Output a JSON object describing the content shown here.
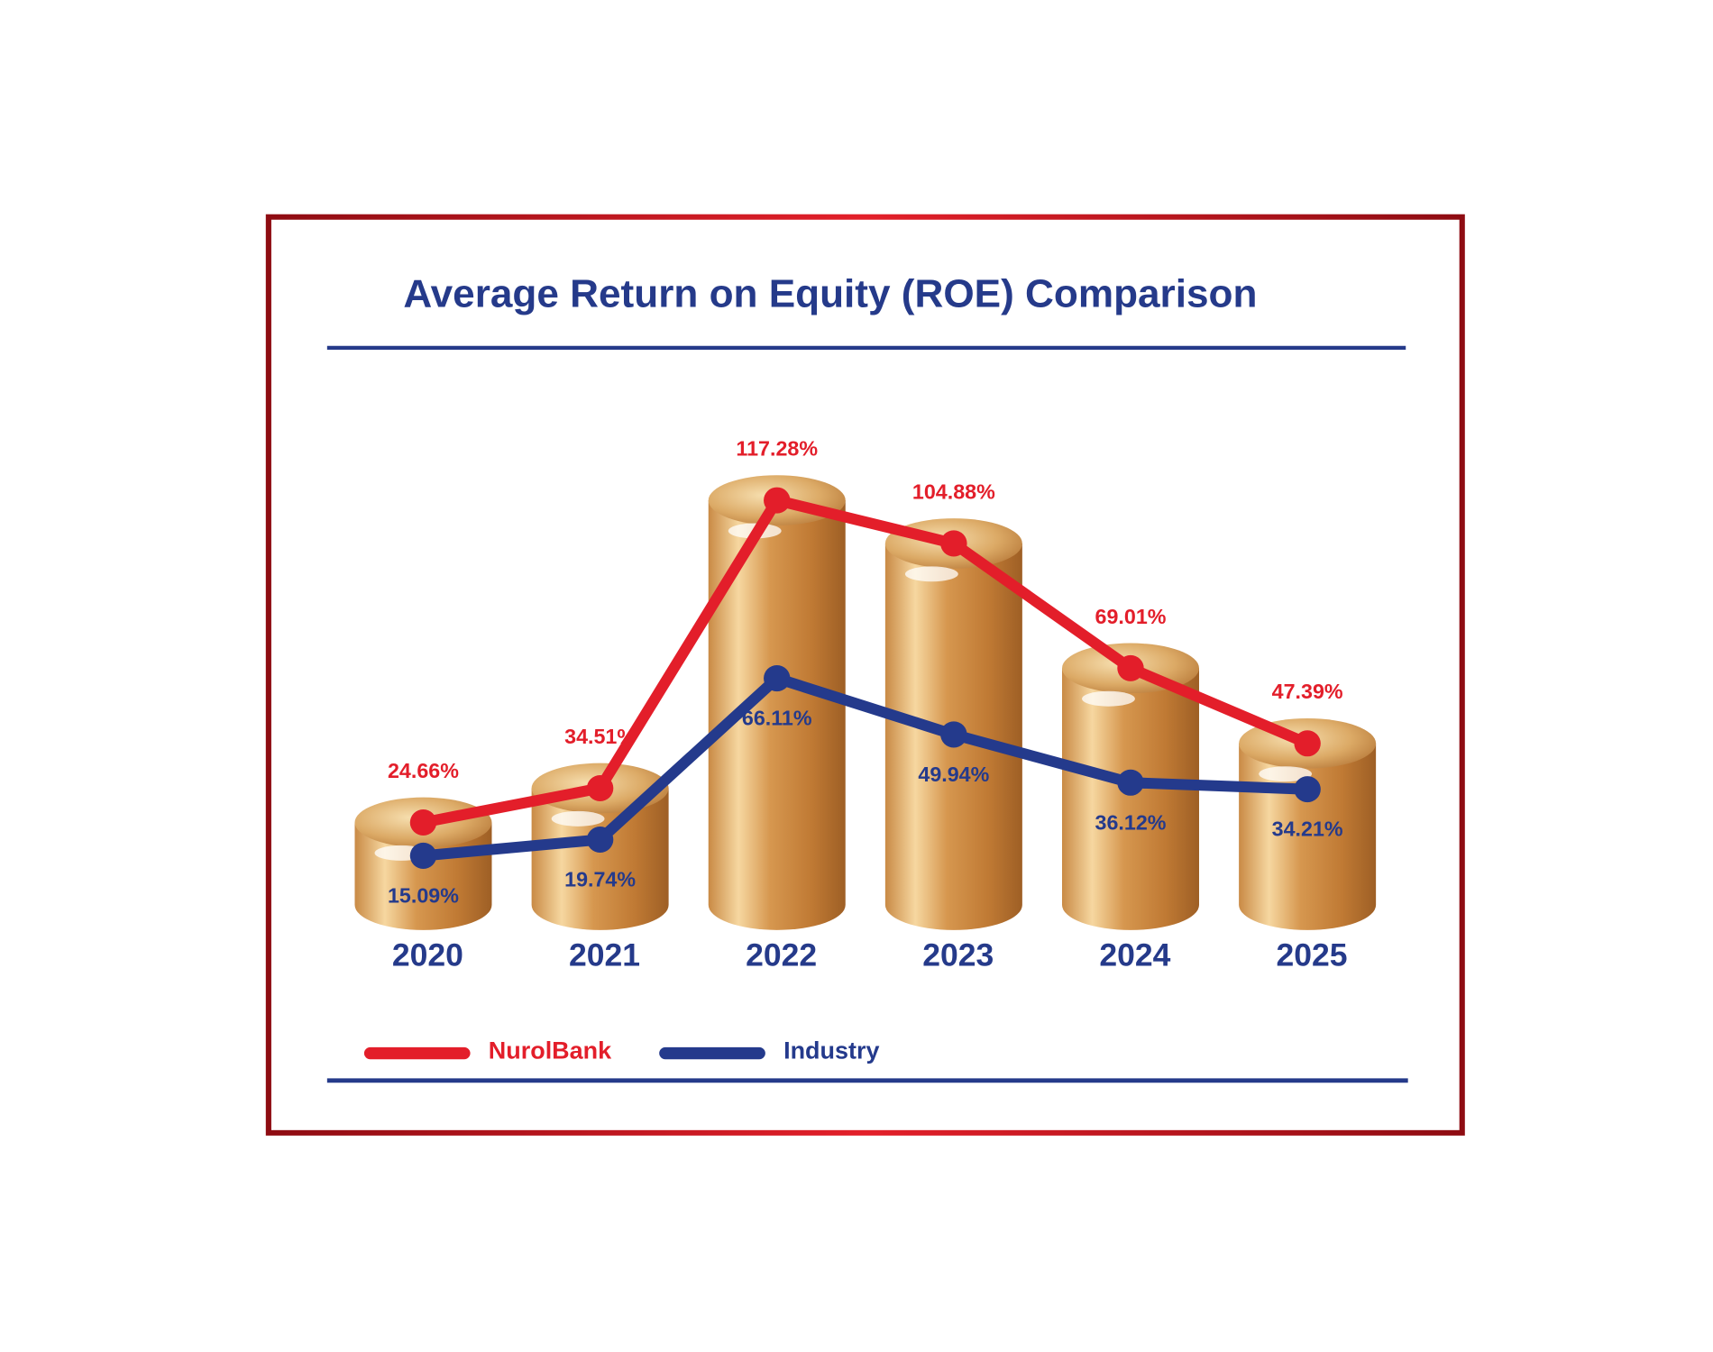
{
  "chart_data": {
    "type": "line",
    "title": "Average Return on Equity (ROE) Comparison",
    "categories": [
      "2020",
      "2021",
      "2022",
      "2023",
      "2024",
      "2025"
    ],
    "series": [
      {
        "name": "NurolBank",
        "color": "#e31e2a",
        "values": [
          24.66,
          34.51,
          117.28,
          104.88,
          69.01,
          47.39
        ],
        "value_labels": [
          "24.66%",
          "34.51%",
          "117.28%",
          "104.88%",
          "69.01%",
          "47.39%"
        ]
      },
      {
        "name": "Industry",
        "color": "#243a8c",
        "values": [
          15.09,
          19.74,
          66.11,
          49.94,
          36.12,
          34.21
        ],
        "value_labels": [
          "15.09%",
          "19.74%",
          "66.11%",
          "49.94%",
          "36.12%",
          "34.21%"
        ]
      }
    ]
  }
}
